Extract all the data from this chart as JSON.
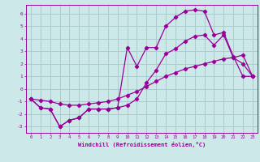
{
  "xlabel": "Windchill (Refroidissement éolien,°C)",
  "bg_color": "#cce8e8",
  "grid_color": "#aacccc",
  "line_color": "#990099",
  "xlim": [
    -0.5,
    23.5
  ],
  "ylim": [
    -3.5,
    6.7
  ],
  "xticks": [
    0,
    1,
    2,
    3,
    4,
    5,
    6,
    7,
    8,
    9,
    10,
    11,
    12,
    13,
    14,
    15,
    16,
    17,
    18,
    19,
    20,
    21,
    22,
    23
  ],
  "yticks": [
    -3,
    -2,
    -1,
    0,
    1,
    2,
    3,
    4,
    5,
    6
  ],
  "line1_x": [
    0,
    1,
    2,
    3,
    4,
    5,
    6,
    7,
    8,
    9,
    10,
    11,
    12,
    13,
    14,
    15,
    16,
    17,
    18,
    19,
    20,
    21,
    22,
    23
  ],
  "line1_y": [
    -0.8,
    -1.5,
    -1.6,
    -3.0,
    -2.5,
    -2.3,
    -1.6,
    -1.6,
    -1.6,
    -1.5,
    3.3,
    1.8,
    3.3,
    3.3,
    5.0,
    5.7,
    6.2,
    6.3,
    6.2,
    4.3,
    4.5,
    2.6,
    1.0,
    1.0
  ],
  "line2_x": [
    0,
    1,
    2,
    3,
    4,
    5,
    6,
    7,
    8,
    9,
    10,
    11,
    12,
    13,
    14,
    15,
    16,
    17,
    18,
    19,
    20,
    21,
    22,
    23
  ],
  "line2_y": [
    -0.8,
    -0.9,
    -1.0,
    -1.2,
    -1.3,
    -1.3,
    -1.2,
    -1.1,
    -1.0,
    -0.8,
    -0.5,
    -0.2,
    0.2,
    0.6,
    1.0,
    1.3,
    1.6,
    1.8,
    2.0,
    2.2,
    2.4,
    2.5,
    2.7,
    1.0
  ],
  "line3_x": [
    0,
    1,
    2,
    3,
    4,
    5,
    6,
    7,
    8,
    9,
    10,
    11,
    12,
    13,
    14,
    15,
    16,
    17,
    18,
    19,
    20,
    21,
    22,
    23
  ],
  "line3_y": [
    -0.8,
    -1.5,
    -1.6,
    -3.0,
    -2.5,
    -2.3,
    -1.6,
    -1.6,
    -1.6,
    -1.5,
    -1.3,
    -0.8,
    0.5,
    1.5,
    2.8,
    3.2,
    3.8,
    4.2,
    4.3,
    3.5,
    4.3,
    2.5,
    2.0,
    1.0
  ]
}
